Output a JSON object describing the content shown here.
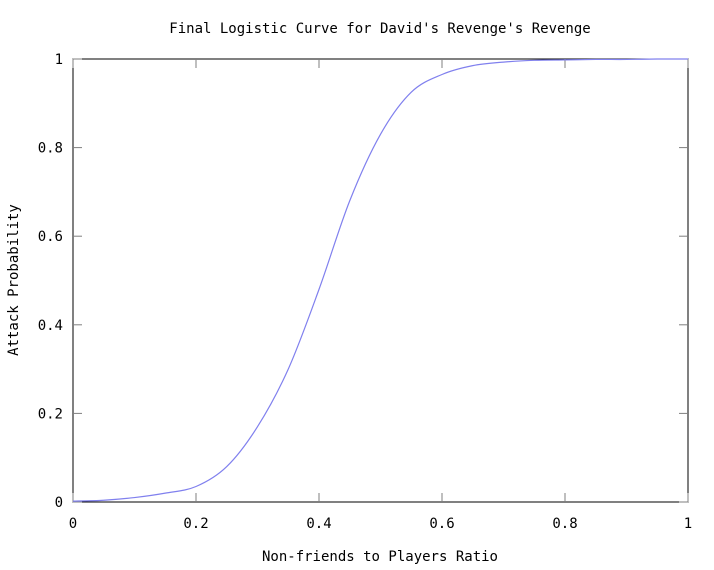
{
  "chart_data": {
    "type": "line",
    "title": "Final Logistic Curve for David's Revenge's Revenge",
    "xlabel": "Non-friends to Players Ratio",
    "ylabel": "Attack Probability",
    "xlim": [
      0,
      1
    ],
    "ylim": [
      0,
      1
    ],
    "x_ticks": [
      0,
      0.2,
      0.4,
      0.6,
      0.8,
      1
    ],
    "x_tick_labels": [
      "0",
      "0.2",
      "0.4",
      "0.6",
      "0.8",
      "1"
    ],
    "y_ticks": [
      0,
      0.2,
      0.4,
      0.6,
      0.8,
      1
    ],
    "y_tick_labels": [
      "0",
      "0.2",
      "0.4",
      "0.6",
      "0.8",
      "1"
    ],
    "grid": false,
    "series": [
      {
        "color": "#8080ee",
        "x": [
          0,
          0.05,
          0.1,
          0.15,
          0.2,
          0.25,
          0.3,
          0.35,
          0.4,
          0.45,
          0.5,
          0.55,
          0.6,
          0.65,
          0.7,
          0.75,
          0.8,
          0.85,
          0.9,
          0.95,
          1
        ],
        "y": [
          0.002,
          0.004,
          0.01,
          0.02,
          0.035,
          0.08,
          0.17,
          0.3,
          0.48,
          0.68,
          0.83,
          0.925,
          0.965,
          0.985,
          0.993,
          0.997,
          0.998,
          0.999,
          0.999,
          1,
          1
        ]
      }
    ]
  }
}
